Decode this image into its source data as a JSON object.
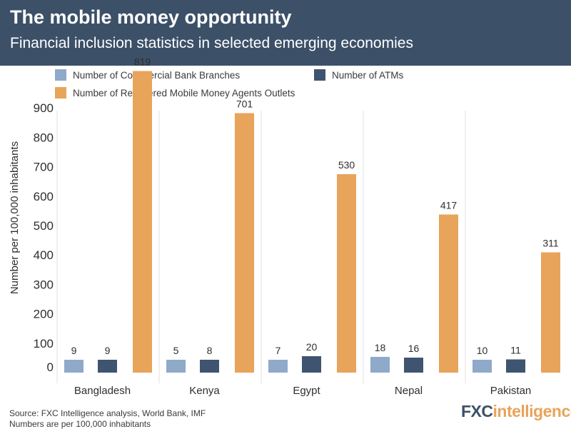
{
  "header": {
    "title": "The mobile money opportunity",
    "subtitle": "Financial inclusion statistics in selected emerging economies"
  },
  "footer": {
    "source": "Source: FXC Intelligence analysis, World Bank, IMF",
    "note": "Numbers are per 100,000 inhabitants"
  },
  "logo": {
    "fx": "FXC",
    "rest": "intelligence",
    "trademark": "®"
  },
  "colors": {
    "header_bg": "#3c5068",
    "branches": "#8fa9c9",
    "atms": "#3f5470",
    "agents": "#e8a45a"
  },
  "chart_data": {
    "type": "bar",
    "categories": [
      "Bangladesh",
      "Kenya",
      "Egypt",
      "Nepal",
      "Pakistan"
    ],
    "series": [
      {
        "name": "Number of Commercial Bank Branches",
        "values": [
          9,
          5,
          7,
          18,
          10
        ]
      },
      {
        "name": "Number of ATMs",
        "values": [
          9,
          8,
          20,
          16,
          11
        ]
      },
      {
        "name": "Number of Registered Mobile Money Agents Outlets",
        "values": [
          819,
          701,
          530,
          417,
          311
        ]
      }
    ],
    "ylabel": "Number per 100,000 inhabitants",
    "yticks": [
      0,
      100,
      200,
      300,
      400,
      500,
      600,
      700,
      800,
      900
    ],
    "ylim": [
      0,
      900
    ],
    "legend_position": "top",
    "grid": false
  }
}
